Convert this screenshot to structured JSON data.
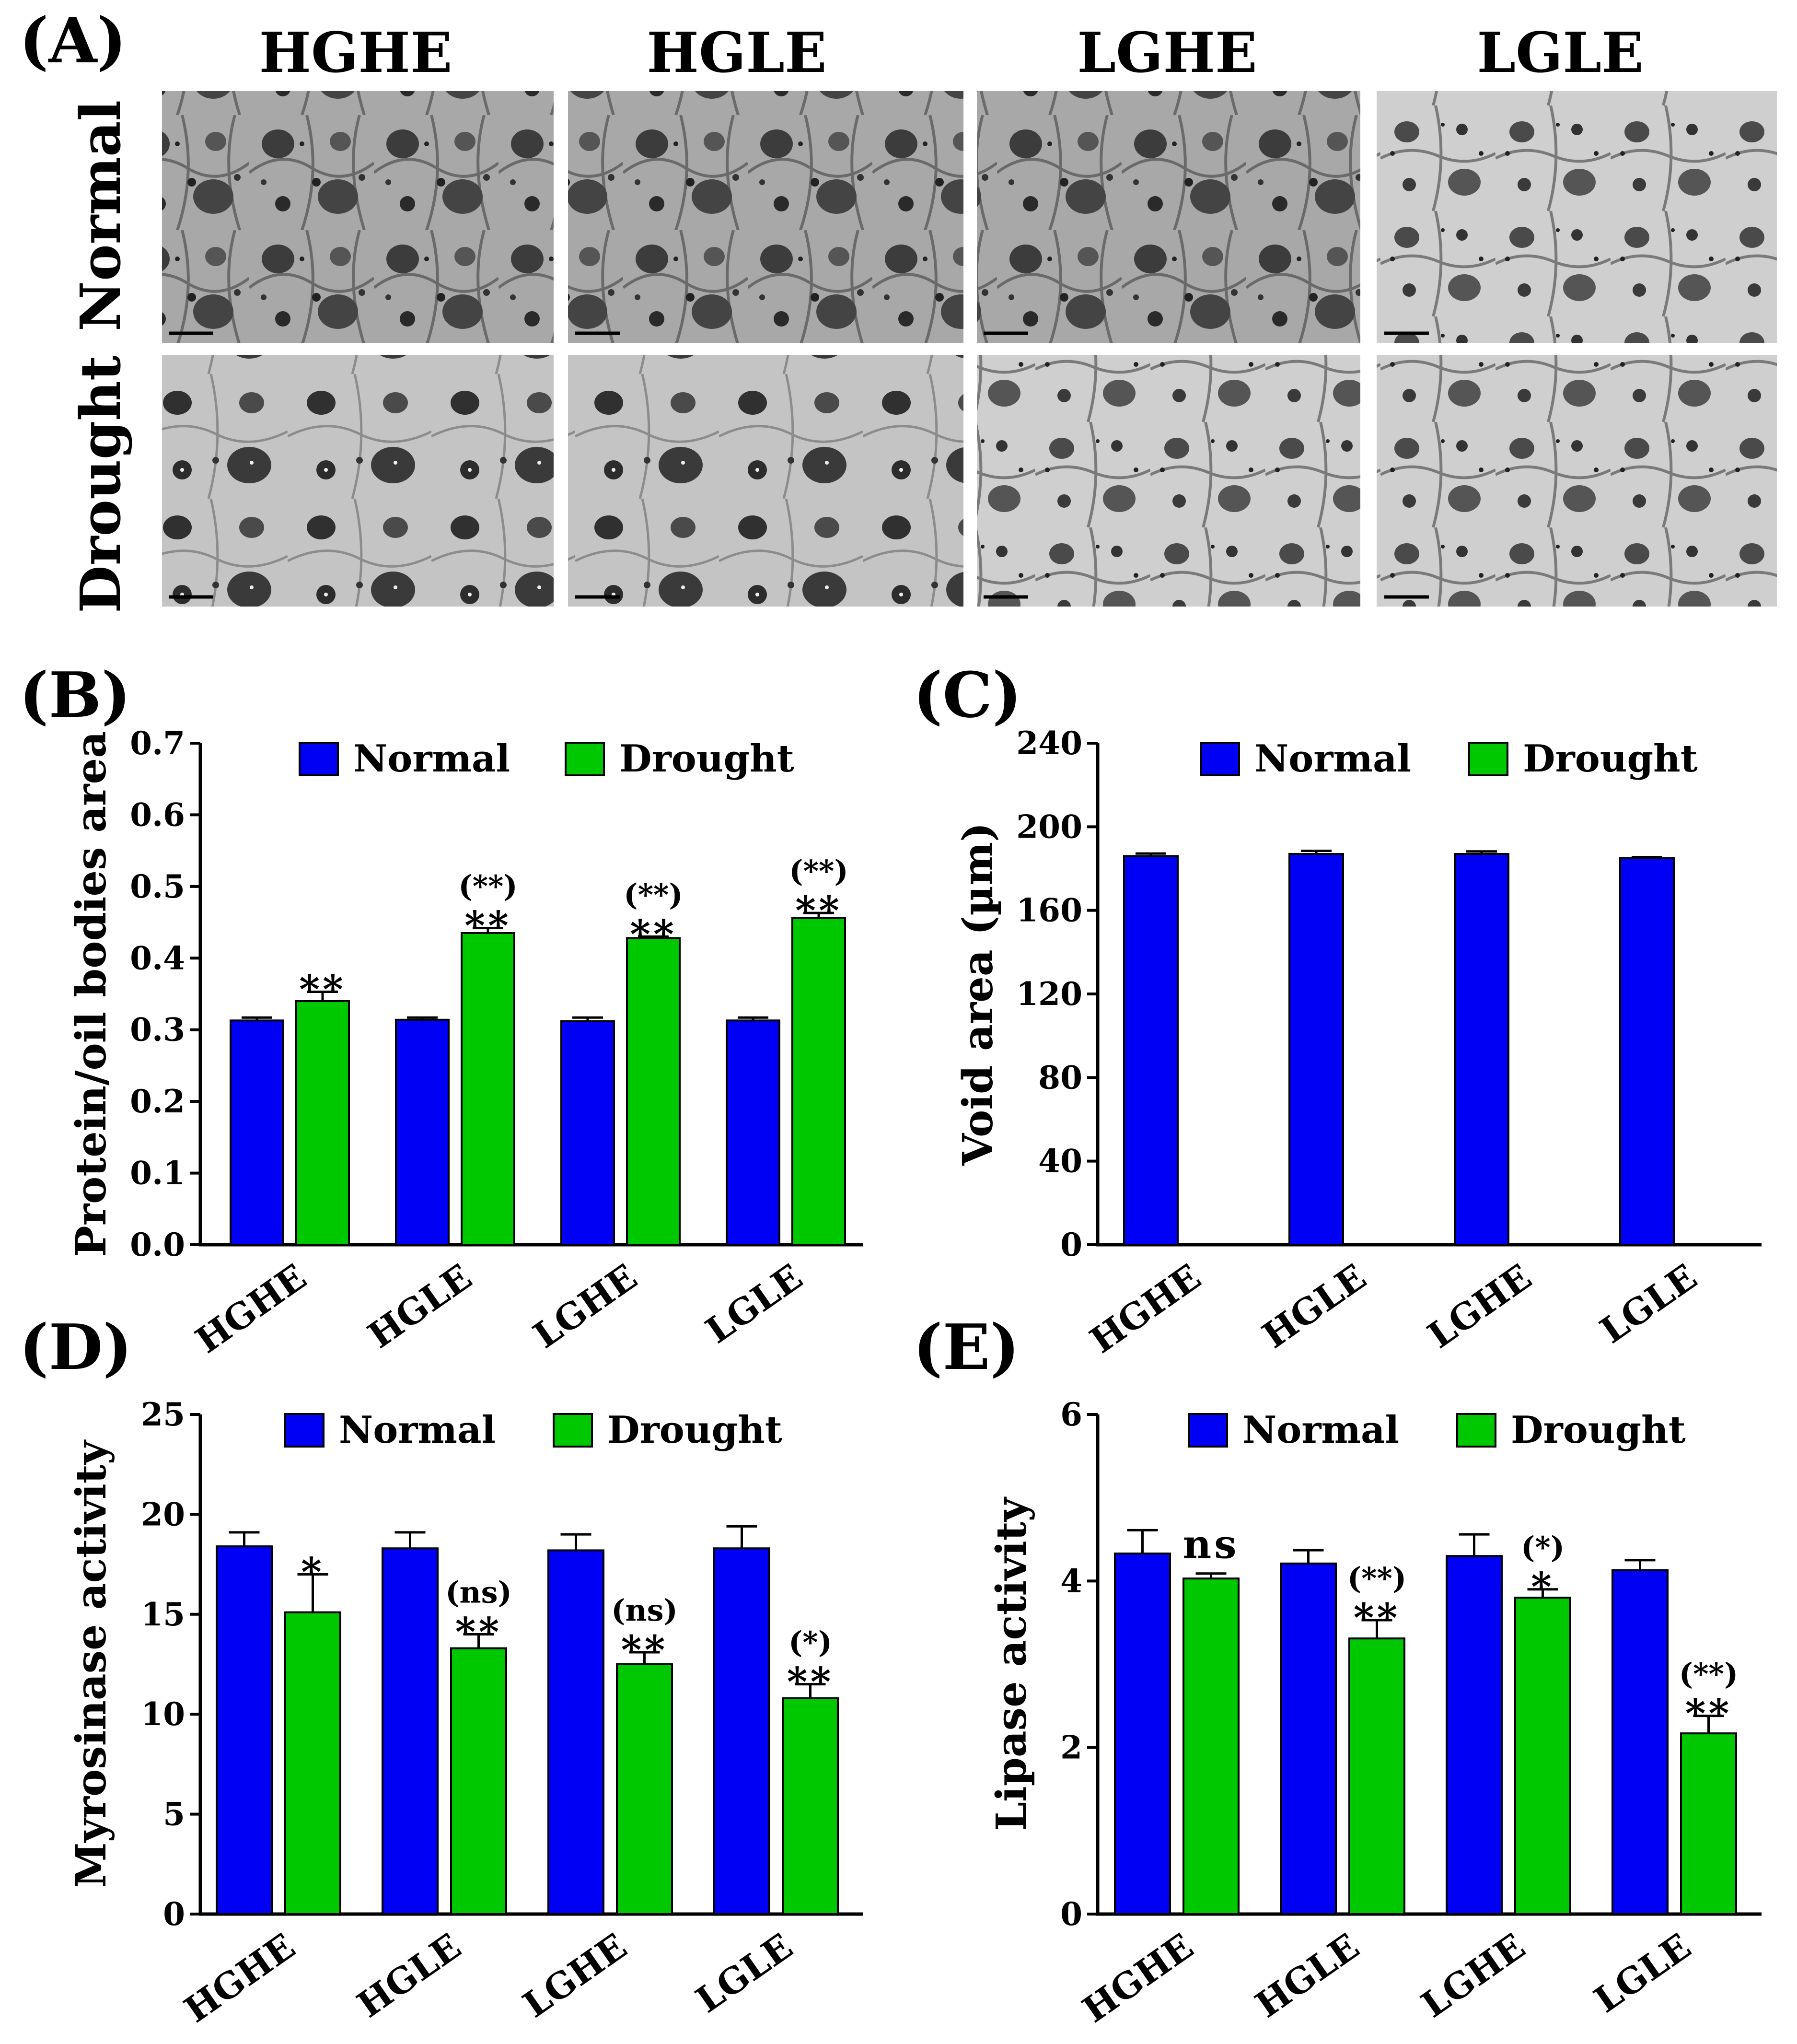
{
  "colors": {
    "normal": "#0000f5",
    "drought": "#00c800"
  },
  "micrographs": {
    "letter": "(A)",
    "columns": [
      "HGHE",
      "HGLE",
      "LGHE",
      "LGLE"
    ],
    "rows": [
      "Normal",
      "Drought"
    ]
  },
  "chart_data": [
    {
      "id": "B",
      "letter": "(B)",
      "type": "bar",
      "categories": [
        "HGHE",
        "HGLE",
        "LGHE",
        "LGLE"
      ],
      "ylabel": "Protein/oil bodies area",
      "xlabel": "",
      "ylim": [
        0,
        0.7
      ],
      "yticks": [
        0.0,
        0.1,
        0.2,
        0.3,
        0.4,
        0.5,
        0.6,
        0.7
      ],
      "yticks_labels": [
        "0.0",
        "0.1",
        "0.2",
        "0.3",
        "0.4",
        "0.5",
        "0.6",
        "0.7"
      ],
      "legend": "top",
      "series": [
        {
          "name": "Normal",
          "values": [
            0.313,
            0.314,
            0.312,
            0.313
          ],
          "errors": [
            0.004,
            0.003,
            0.005,
            0.004
          ]
        },
        {
          "name": "Drought",
          "values": [
            0.34,
            0.435,
            0.428,
            0.456
          ],
          "errors": [
            0.013,
            0.007,
            0.002,
            0.007
          ],
          "sig": [
            "**",
            "**",
            "**",
            "**"
          ],
          "sig_paren": [
            "",
            "(**)",
            "(**)",
            "(**)"
          ]
        }
      ]
    },
    {
      "id": "C",
      "letter": "(C)",
      "type": "bar",
      "categories": [
        "HGHE",
        "HGLE",
        "LGHE",
        "LGLE"
      ],
      "ylabel": "Void area (µm)",
      "xlabel": "",
      "ylim": [
        0,
        240
      ],
      "yticks": [
        0,
        40,
        80,
        120,
        160,
        200,
        240
      ],
      "yticks_labels": [
        "0",
        "40",
        "80",
        "120",
        "160",
        "200",
        "240"
      ],
      "legend": "top",
      "series": [
        {
          "name": "Normal",
          "values": [
            186,
            187,
            187,
            185
          ],
          "errors": [
            1.2,
            1.5,
            1.2,
            0.5
          ]
        },
        {
          "name": "Drought",
          "values": [
            0,
            0,
            0,
            0
          ],
          "errors": [
            0,
            0,
            0,
            0
          ],
          "sig": [
            "",
            "",
            "",
            ""
          ],
          "sig_paren": [
            "",
            "",
            "",
            ""
          ]
        }
      ]
    },
    {
      "id": "D",
      "letter": "(D)",
      "type": "bar",
      "categories": [
        "HGHE",
        "HGLE",
        "LGHE",
        "LGLE"
      ],
      "ylabel": "Myrosinase activity",
      "xlabel": "",
      "ylim": [
        0,
        25
      ],
      "yticks": [
        0,
        5,
        10,
        15,
        20,
        25
      ],
      "yticks_labels": [
        "0",
        "5",
        "10",
        "15",
        "20",
        "25"
      ],
      "legend": "top",
      "series": [
        {
          "name": "Normal",
          "values": [
            18.4,
            18.3,
            18.2,
            18.3
          ],
          "errors": [
            0.7,
            0.8,
            0.8,
            1.1
          ]
        },
        {
          "name": "Drought",
          "values": [
            15.1,
            13.3,
            12.5,
            10.8
          ],
          "errors": [
            1.9,
            0.7,
            0.6,
            0.7
          ],
          "sig": [
            "*",
            "**",
            "**",
            "**"
          ],
          "sig_paren": [
            "",
            "(ns)",
            "(ns)",
            "(*)"
          ]
        }
      ]
    },
    {
      "id": "E",
      "letter": "(E)",
      "type": "bar",
      "categories": [
        "HGHE",
        "HGLE",
        "LGHE",
        "LGLE"
      ],
      "ylabel": "Lipase activity",
      "xlabel": "",
      "ylim": [
        0,
        6
      ],
      "yticks": [
        0,
        2,
        4,
        6
      ],
      "yticks_labels": [
        "0",
        "2",
        "4",
        "6"
      ],
      "legend": "top",
      "series": [
        {
          "name": "Normal",
          "values": [
            4.33,
            4.21,
            4.3,
            4.13
          ],
          "errors": [
            0.28,
            0.16,
            0.26,
            0.12
          ]
        },
        {
          "name": "Drought",
          "values": [
            4.03,
            3.31,
            3.8,
            2.17
          ],
          "errors": [
            0.06,
            0.22,
            0.1,
            0.21
          ],
          "sig": [
            "ns",
            "**",
            "*",
            "**"
          ],
          "sig_paren": [
            "",
            "(**)",
            "(*)",
            "(**)"
          ]
        }
      ]
    }
  ]
}
